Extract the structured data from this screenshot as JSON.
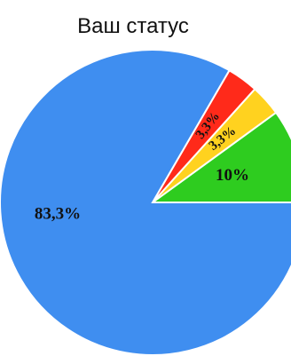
{
  "chart_data": {
    "type": "pie",
    "title": "Ваш статус",
    "slices": [
      {
        "label": "10%",
        "value": 10,
        "color": "#2ecc1f"
      },
      {
        "label": "3,3%",
        "value": 3.3,
        "color": "#ffd21f"
      },
      {
        "label": "3,3%",
        "value": 3.3,
        "color": "#ff2a1a"
      },
      {
        "label": "83,3%",
        "value": 83.3,
        "color": "#3f8ef0"
      }
    ],
    "start_angle_deg": 0,
    "direction": "counterclockwise",
    "legend": "none"
  }
}
